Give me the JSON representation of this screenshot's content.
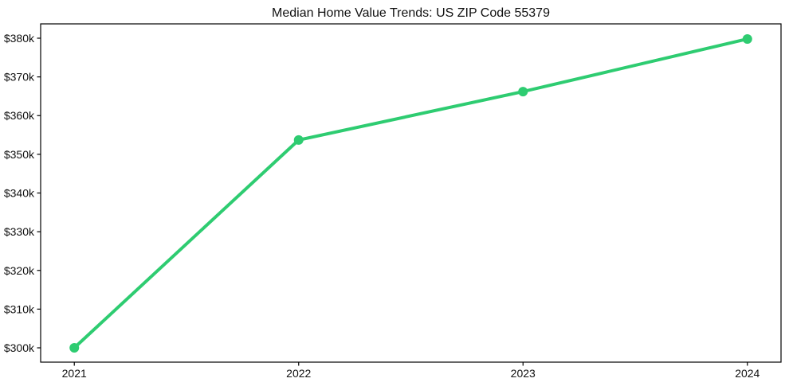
{
  "chart_data": {
    "type": "line",
    "title": "Median Home Value Trends: US ZIP Code 55379",
    "xlabel": "",
    "ylabel": "",
    "categories": [
      "2021",
      "2022",
      "2023",
      "2024"
    ],
    "x_numeric": [
      2021,
      2022,
      2023,
      2024
    ],
    "values": [
      300000,
      353700,
      366200,
      379800
    ],
    "y_tick_values": [
      300000,
      310000,
      320000,
      330000,
      340000,
      350000,
      360000,
      370000,
      380000
    ],
    "y_tick_labels": [
      "$300k",
      "$310k",
      "$320k",
      "$330k",
      "$340k",
      "$350k",
      "$360k",
      "$370k",
      "$380k"
    ],
    "xlim": [
      2020.85,
      2024.15
    ],
    "ylim": [
      296300,
      383700
    ],
    "grid": false,
    "legend_position": "none",
    "line_color": "#2ecc71",
    "marker": "circle",
    "axis_color": "#000000",
    "text_color": "#111111",
    "background_color": "#ffffff"
  }
}
